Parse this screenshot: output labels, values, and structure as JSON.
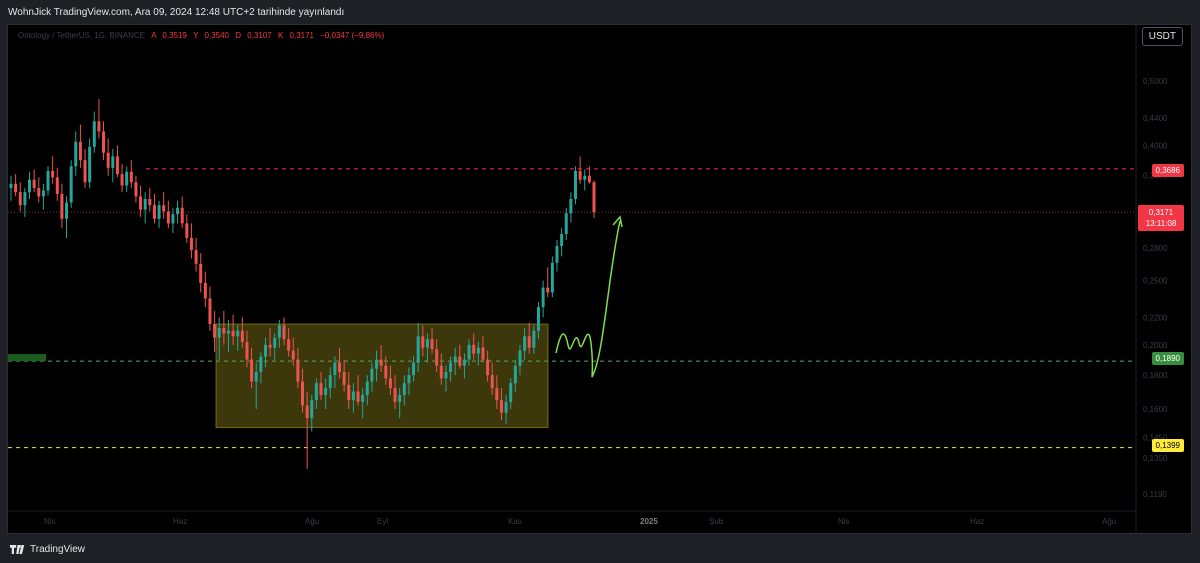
{
  "header": {
    "title": "WohnJick TradingView.com, Ara 09, 2024 12:48 UTC+2 tarihinde yayınlandı"
  },
  "symbol": {
    "name": "Ontology / TetherUS, 1G, BINANCE",
    "open_label": "A",
    "open": "0,3519",
    "high_label": "Y",
    "high": "0,3540",
    "low_label": "D",
    "low": "0,3107",
    "close_label": "K",
    "close": "0,3171",
    "change": "−0,0347 (−9,86%)"
  },
  "currency_button": "USDT",
  "y_axis": {
    "ticks": [
      "0,5000",
      "0,4400",
      "0,4000",
      "0,3600",
      "0,3200",
      "0,2800",
      "0,2500",
      "0,2200",
      "0,2000",
      "0,1800",
      "0,1600",
      "0,1450",
      "0,1350",
      "0,1190"
    ]
  },
  "x_axis": {
    "ticks": [
      "Nis",
      "Haz",
      "Ağu",
      "Eyl",
      "Kas",
      "2025",
      "Şub",
      "Nis",
      "Haz",
      "Ağu"
    ]
  },
  "price_tags": {
    "resistance": "0,3686",
    "current": "0,3171",
    "countdown": "13:11:08",
    "support": "0,1890",
    "low_level": "0,1399"
  },
  "colors": {
    "up": "#26a69a",
    "down": "#ef5350",
    "resistance": "#f23645",
    "support": "#4caf50",
    "low_level": "#ffeb3b",
    "box": "rgba(215,200,40,0.28)",
    "arrow": "#7ee04a"
  },
  "footer": {
    "brand": "TradingView"
  },
  "chart_data": {
    "type": "candlestick",
    "symbol": "Ontology / TetherUS, 1G, BINANCE",
    "currency": "USDT",
    "x_ticks": [
      "Nis",
      "Haz",
      "Ağu",
      "Eyl",
      "Kas",
      "2025",
      "Şub",
      "Nis",
      "Haz",
      "Ağu"
    ],
    "levels": [
      {
        "price": 0.3686,
        "style": "dashed",
        "color": "#f23645"
      },
      {
        "price": 0.189,
        "style": "dashed",
        "color": "#4caf50"
      },
      {
        "price": 0.1399,
        "style": "dashed",
        "color": "#ffeb3b"
      }
    ],
    "range_box": {
      "from": "Haz",
      "to": "Kas",
      "top": 0.215,
      "bottom": 0.15
    },
    "ohlc": [
      [
        0.345,
        0.36,
        0.33,
        0.35
      ],
      [
        0.35,
        0.362,
        0.335,
        0.34
      ],
      [
        0.34,
        0.352,
        0.318,
        0.325
      ],
      [
        0.325,
        0.345,
        0.312,
        0.34
      ],
      [
        0.34,
        0.365,
        0.332,
        0.355
      ],
      [
        0.355,
        0.368,
        0.34,
        0.345
      ],
      [
        0.345,
        0.358,
        0.328,
        0.335
      ],
      [
        0.335,
        0.35,
        0.32,
        0.342
      ],
      [
        0.342,
        0.372,
        0.336,
        0.366
      ],
      [
        0.366,
        0.385,
        0.35,
        0.358
      ],
      [
        0.358,
        0.37,
        0.33,
        0.338
      ],
      [
        0.338,
        0.35,
        0.3,
        0.31
      ],
      [
        0.31,
        0.335,
        0.29,
        0.328
      ],
      [
        0.328,
        0.38,
        0.322,
        0.372
      ],
      [
        0.372,
        0.42,
        0.36,
        0.405
      ],
      [
        0.405,
        0.43,
        0.37,
        0.38
      ],
      [
        0.38,
        0.395,
        0.345,
        0.352
      ],
      [
        0.352,
        0.41,
        0.345,
        0.398
      ],
      [
        0.398,
        0.45,
        0.39,
        0.435
      ],
      [
        0.435,
        0.47,
        0.41,
        0.42
      ],
      [
        0.42,
        0.435,
        0.38,
        0.39
      ],
      [
        0.39,
        0.41,
        0.36,
        0.37
      ],
      [
        0.37,
        0.395,
        0.352,
        0.385
      ],
      [
        0.385,
        0.4,
        0.358,
        0.362
      ],
      [
        0.362,
        0.375,
        0.34,
        0.348
      ],
      [
        0.348,
        0.372,
        0.34,
        0.365
      ],
      [
        0.365,
        0.38,
        0.345,
        0.352
      ],
      [
        0.352,
        0.36,
        0.328,
        0.335
      ],
      [
        0.335,
        0.348,
        0.312,
        0.32
      ],
      [
        0.32,
        0.34,
        0.305,
        0.332
      ],
      [
        0.332,
        0.345,
        0.318,
        0.325
      ],
      [
        0.325,
        0.338,
        0.305,
        0.31
      ],
      [
        0.31,
        0.33,
        0.3,
        0.325
      ],
      [
        0.325,
        0.34,
        0.31,
        0.318
      ],
      [
        0.318,
        0.33,
        0.3,
        0.305
      ],
      [
        0.305,
        0.322,
        0.295,
        0.315
      ],
      [
        0.315,
        0.33,
        0.305,
        0.322
      ],
      [
        0.322,
        0.335,
        0.3,
        0.305
      ],
      [
        0.305,
        0.315,
        0.285,
        0.29
      ],
      [
        0.29,
        0.305,
        0.27,
        0.278
      ],
      [
        0.278,
        0.29,
        0.258,
        0.265
      ],
      [
        0.265,
        0.275,
        0.24,
        0.248
      ],
      [
        0.248,
        0.258,
        0.228,
        0.235
      ],
      [
        0.235,
        0.245,
        0.21,
        0.215
      ],
      [
        0.215,
        0.225,
        0.195,
        0.205
      ],
      [
        0.205,
        0.22,
        0.19,
        0.212
      ],
      [
        0.212,
        0.225,
        0.2,
        0.208
      ],
      [
        0.208,
        0.218,
        0.195,
        0.21
      ],
      [
        0.21,
        0.222,
        0.2,
        0.206
      ],
      [
        0.206,
        0.214,
        0.196,
        0.21
      ],
      [
        0.21,
        0.22,
        0.198,
        0.202
      ],
      [
        0.202,
        0.21,
        0.185,
        0.19
      ],
      [
        0.19,
        0.198,
        0.172,
        0.176
      ],
      [
        0.176,
        0.188,
        0.16,
        0.182
      ],
      [
        0.182,
        0.195,
        0.175,
        0.192
      ],
      [
        0.192,
        0.205,
        0.185,
        0.2
      ],
      [
        0.2,
        0.212,
        0.192,
        0.198
      ],
      [
        0.198,
        0.208,
        0.19,
        0.205
      ],
      [
        0.205,
        0.218,
        0.198,
        0.214
      ],
      [
        0.214,
        0.22,
        0.2,
        0.204
      ],
      [
        0.204,
        0.212,
        0.192,
        0.196
      ],
      [
        0.196,
        0.205,
        0.186,
        0.19
      ],
      [
        0.19,
        0.198,
        0.172,
        0.176
      ],
      [
        0.176,
        0.184,
        0.158,
        0.162
      ],
      [
        0.162,
        0.17,
        0.13,
        0.155
      ],
      [
        0.155,
        0.168,
        0.148,
        0.165
      ],
      [
        0.165,
        0.178,
        0.16,
        0.175
      ],
      [
        0.175,
        0.182,
        0.165,
        0.168
      ],
      [
        0.168,
        0.178,
        0.16,
        0.172
      ],
      [
        0.172,
        0.185,
        0.166,
        0.18
      ],
      [
        0.18,
        0.192,
        0.172,
        0.188
      ],
      [
        0.188,
        0.198,
        0.178,
        0.182
      ],
      [
        0.182,
        0.19,
        0.17,
        0.174
      ],
      [
        0.174,
        0.182,
        0.16,
        0.165
      ],
      [
        0.165,
        0.175,
        0.158,
        0.17
      ],
      [
        0.17,
        0.18,
        0.162,
        0.164
      ],
      [
        0.164,
        0.172,
        0.155,
        0.168
      ],
      [
        0.168,
        0.18,
        0.162,
        0.176
      ],
      [
        0.176,
        0.188,
        0.17,
        0.184
      ],
      [
        0.184,
        0.196,
        0.176,
        0.19
      ],
      [
        0.19,
        0.2,
        0.182,
        0.186
      ],
      [
        0.186,
        0.192,
        0.174,
        0.178
      ],
      [
        0.178,
        0.186,
        0.168,
        0.172
      ],
      [
        0.172,
        0.18,
        0.16,
        0.164
      ],
      [
        0.164,
        0.172,
        0.155,
        0.168
      ],
      [
        0.168,
        0.18,
        0.162,
        0.175
      ],
      [
        0.175,
        0.185,
        0.168,
        0.18
      ],
      [
        0.18,
        0.192,
        0.176,
        0.188
      ],
      [
        0.188,
        0.216,
        0.182,
        0.206
      ],
      [
        0.206,
        0.214,
        0.192,
        0.198
      ],
      [
        0.198,
        0.208,
        0.188,
        0.204
      ],
      [
        0.204,
        0.212,
        0.194,
        0.197
      ],
      [
        0.197,
        0.204,
        0.182,
        0.186
      ],
      [
        0.186,
        0.194,
        0.174,
        0.178
      ],
      [
        0.178,
        0.186,
        0.17,
        0.182
      ],
      [
        0.182,
        0.192,
        0.176,
        0.188
      ],
      [
        0.188,
        0.198,
        0.18,
        0.192
      ],
      [
        0.192,
        0.2,
        0.184,
        0.186
      ],
      [
        0.186,
        0.194,
        0.178,
        0.19
      ],
      [
        0.19,
        0.204,
        0.186,
        0.2
      ],
      [
        0.2,
        0.208,
        0.19,
        0.194
      ],
      [
        0.194,
        0.202,
        0.186,
        0.198
      ],
      [
        0.198,
        0.206,
        0.188,
        0.19
      ],
      [
        0.19,
        0.196,
        0.176,
        0.18
      ],
      [
        0.18,
        0.188,
        0.168,
        0.172
      ],
      [
        0.172,
        0.18,
        0.16,
        0.165
      ],
      [
        0.165,
        0.172,
        0.154,
        0.158
      ],
      [
        0.158,
        0.168,
        0.152,
        0.164
      ],
      [
        0.164,
        0.178,
        0.16,
        0.175
      ],
      [
        0.175,
        0.19,
        0.17,
        0.186
      ],
      [
        0.186,
        0.2,
        0.18,
        0.196
      ],
      [
        0.196,
        0.212,
        0.19,
        0.206
      ],
      [
        0.206,
        0.216,
        0.194,
        0.198
      ],
      [
        0.198,
        0.214,
        0.194,
        0.21
      ],
      [
        0.21,
        0.232,
        0.204,
        0.228
      ],
      [
        0.228,
        0.25,
        0.22,
        0.244
      ],
      [
        0.244,
        0.262,
        0.236,
        0.24
      ],
      [
        0.24,
        0.272,
        0.236,
        0.266
      ],
      [
        0.266,
        0.288,
        0.258,
        0.282
      ],
      [
        0.282,
        0.3,
        0.272,
        0.294
      ],
      [
        0.294,
        0.322,
        0.288,
        0.316
      ],
      [
        0.316,
        0.34,
        0.306,
        0.332
      ],
      [
        0.332,
        0.372,
        0.326,
        0.366
      ],
      [
        0.366,
        0.385,
        0.35,
        0.355
      ],
      [
        0.355,
        0.368,
        0.342,
        0.36
      ],
      [
        0.36,
        0.372,
        0.35,
        0.352
      ],
      [
        0.3519,
        0.354,
        0.3107,
        0.3171
      ]
    ]
  }
}
